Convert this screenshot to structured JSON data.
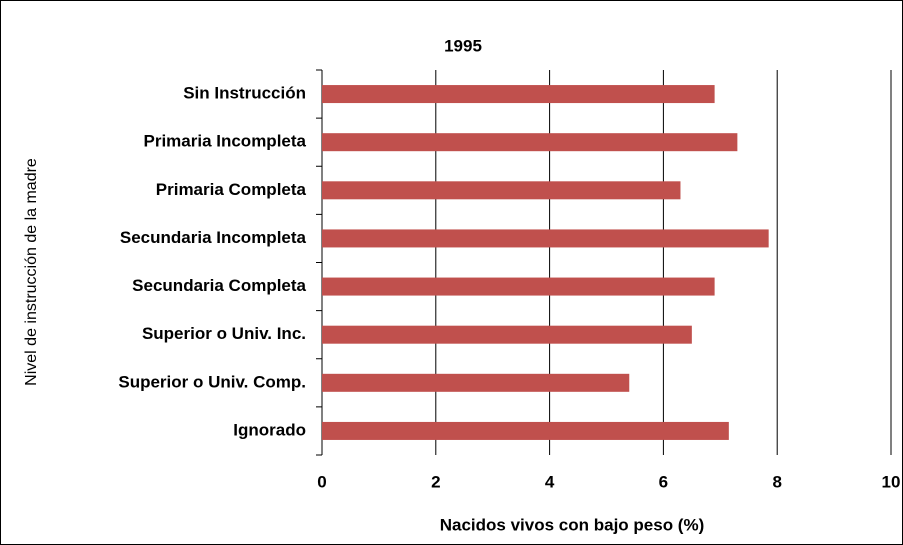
{
  "chart_data": {
    "type": "bar",
    "orientation": "horizontal",
    "title": "1995",
    "x_label": "Nacidos vivos con bajo peso (%)",
    "y_label": "Nivel de instrucción de la madre",
    "categories": [
      "Sin Instrucción",
      "Primaria Incompleta",
      "Primaria Completa",
      "Secundaria Incompleta",
      "Secundaria Completa",
      "Superior o Univ. Inc.",
      "Superior o Univ. Comp.",
      "Ignorado"
    ],
    "values": [
      6.9,
      7.3,
      6.3,
      7.85,
      6.9,
      6.5,
      5.4,
      7.15
    ],
    "color": "#c0504d",
    "xlim": [
      0,
      10
    ],
    "xticks": [
      0,
      2,
      4,
      6,
      8,
      10
    ],
    "grid": true
  }
}
